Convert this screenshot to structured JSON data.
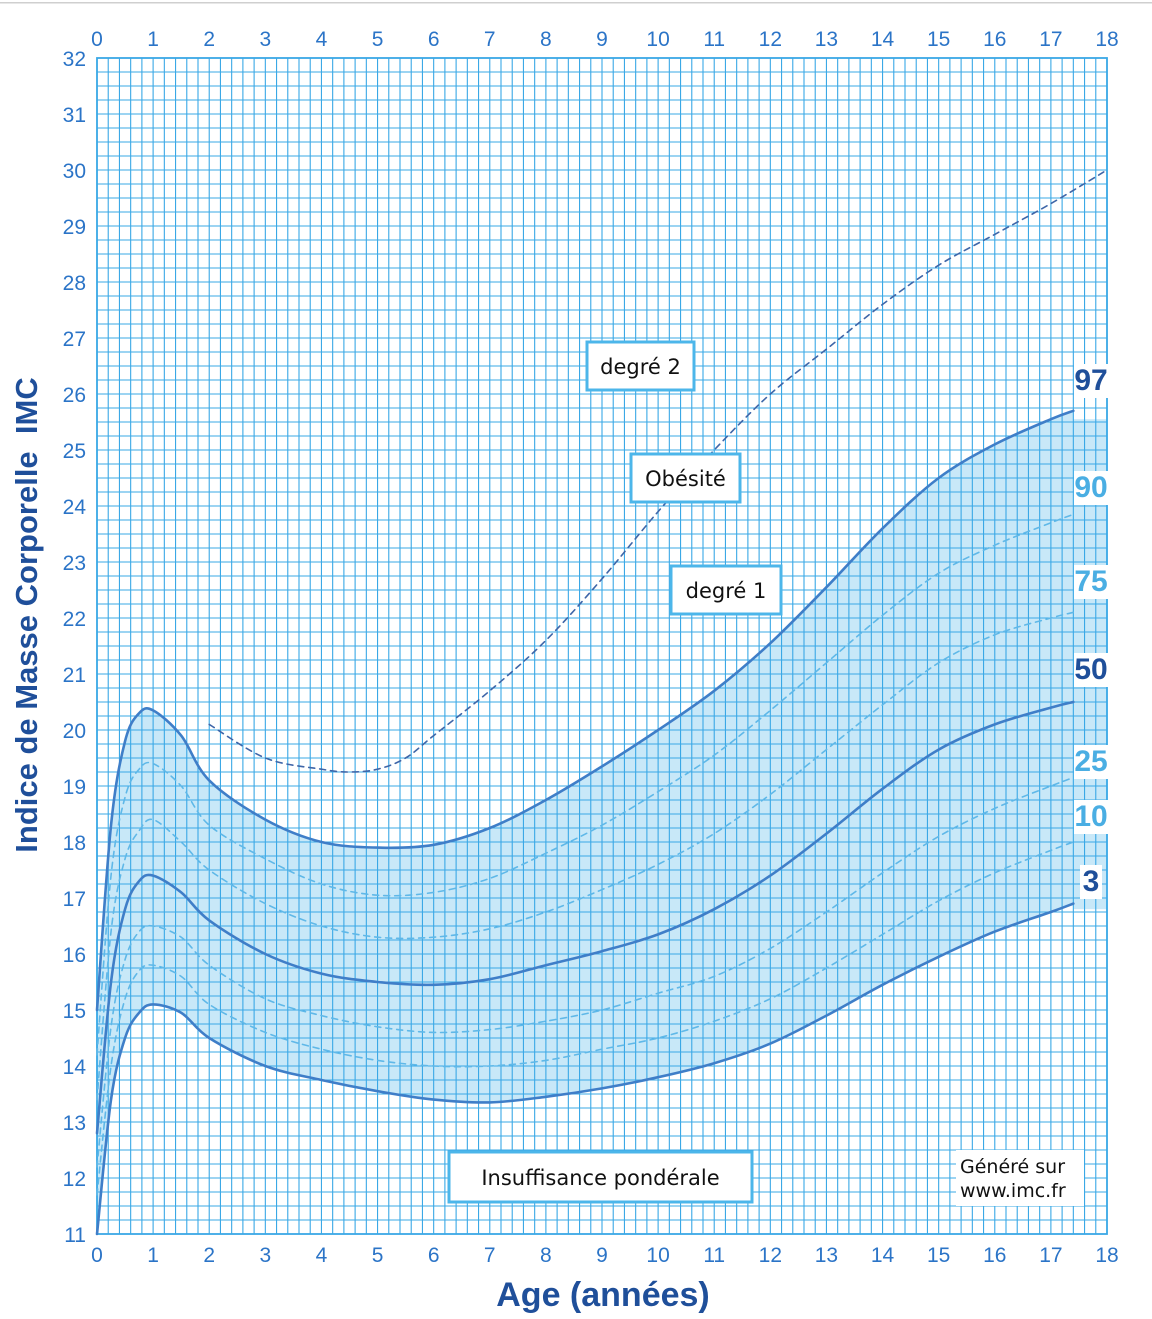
{
  "chart_data": {
    "type": "line",
    "title": "",
    "xlabel": "Age (années)",
    "ylabel": "Indice de Masse Corporelle  IMC",
    "xlim": [
      0,
      18
    ],
    "ylim": [
      11,
      32
    ],
    "x_ticks": [
      "0",
      "1",
      "2",
      "3",
      "4",
      "5",
      "6",
      "7",
      "8",
      "9",
      "10",
      "11",
      "12",
      "13",
      "14",
      "15",
      "16",
      "17",
      "18"
    ],
    "y_ticks": [
      "11",
      "12",
      "13",
      "14",
      "15",
      "16",
      "17",
      "18",
      "19",
      "20",
      "21",
      "22",
      "23",
      "24",
      "25",
      "26",
      "27",
      "28",
      "29",
      "30",
      "31",
      "32"
    ],
    "grid": true,
    "shaded_band": {
      "from_series": "3",
      "to_series": "97",
      "color": "#c8e8f8"
    },
    "series": [
      {
        "name": "3",
        "label": "3",
        "style": "solid",
        "color": "#3f7ec8",
        "x": [
          0,
          0.25,
          0.5,
          0.75,
          1,
          1.5,
          2,
          3,
          4,
          5,
          6,
          7,
          8,
          9,
          10,
          11,
          12,
          13,
          14,
          15,
          16,
          17,
          17.4
        ],
        "y": [
          11.0,
          13.4,
          14.5,
          14.95,
          15.1,
          14.95,
          14.5,
          14.0,
          13.75,
          13.55,
          13.4,
          13.35,
          13.45,
          13.6,
          13.8,
          14.05,
          14.4,
          14.9,
          15.45,
          15.95,
          16.4,
          16.75,
          16.9
        ]
      },
      {
        "name": "10",
        "label": "10",
        "style": "dashed",
        "color": "#5fb8e8",
        "x": [
          0,
          0.25,
          0.5,
          0.75,
          1,
          1.5,
          2,
          3,
          4,
          5,
          6,
          7,
          8,
          9,
          10,
          11,
          12,
          13,
          14,
          15,
          16,
          17,
          17.4
        ],
        "y": [
          11.7,
          14.0,
          15.2,
          15.7,
          15.8,
          15.6,
          15.1,
          14.6,
          14.3,
          14.1,
          14.0,
          14.0,
          14.1,
          14.3,
          14.5,
          14.8,
          15.2,
          15.75,
          16.35,
          16.95,
          17.45,
          17.85,
          18.0
        ]
      },
      {
        "name": "25",
        "label": "25",
        "style": "dashed",
        "color": "#5fb8e8",
        "x": [
          0,
          0.25,
          0.5,
          0.75,
          1,
          1.5,
          2,
          3,
          4,
          5,
          6,
          7,
          8,
          9,
          10,
          11,
          12,
          13,
          14,
          15,
          16,
          17,
          17.4
        ],
        "y": [
          12.2,
          14.7,
          15.9,
          16.4,
          16.5,
          16.3,
          15.8,
          15.2,
          14.9,
          14.7,
          14.6,
          14.65,
          14.8,
          15.0,
          15.3,
          15.6,
          16.1,
          16.75,
          17.45,
          18.1,
          18.6,
          19.0,
          19.15
        ]
      },
      {
        "name": "50",
        "label": "50",
        "style": "solid",
        "color": "#3f7ec8",
        "x": [
          0,
          0.25,
          0.5,
          0.75,
          1,
          1.5,
          2,
          3,
          4,
          5,
          6,
          7,
          8,
          9,
          10,
          11,
          12,
          13,
          14,
          15,
          16,
          17,
          17.4
        ],
        "y": [
          12.8,
          15.5,
          16.8,
          17.3,
          17.4,
          17.1,
          16.6,
          16.0,
          15.65,
          15.5,
          15.45,
          15.55,
          15.8,
          16.05,
          16.35,
          16.8,
          17.4,
          18.15,
          18.95,
          19.65,
          20.1,
          20.4,
          20.5
        ]
      },
      {
        "name": "75",
        "label": "75",
        "style": "dashed",
        "color": "#5fb8e8",
        "x": [
          0,
          0.25,
          0.5,
          0.75,
          1,
          1.5,
          2,
          3,
          4,
          5,
          6,
          7,
          8,
          9,
          10,
          11,
          12,
          13,
          14,
          15,
          16,
          17,
          17.4
        ],
        "y": [
          13.4,
          16.4,
          17.7,
          18.2,
          18.4,
          18.0,
          17.5,
          16.9,
          16.5,
          16.3,
          16.3,
          16.45,
          16.75,
          17.15,
          17.6,
          18.15,
          18.85,
          19.65,
          20.45,
          21.2,
          21.7,
          22.0,
          22.1
        ]
      },
      {
        "name": "90",
        "label": "90",
        "style": "dashed",
        "color": "#5fb8e8",
        "x": [
          0,
          0.25,
          0.5,
          0.75,
          1,
          1.5,
          2,
          3,
          4,
          5,
          6,
          7,
          8,
          9,
          10,
          11,
          12,
          13,
          14,
          15,
          16,
          17,
          17.4
        ],
        "y": [
          14.2,
          17.4,
          18.8,
          19.3,
          19.4,
          19.0,
          18.3,
          17.7,
          17.25,
          17.05,
          17.1,
          17.35,
          17.8,
          18.3,
          18.9,
          19.55,
          20.35,
          21.2,
          22.05,
          22.8,
          23.3,
          23.7,
          23.85
        ]
      },
      {
        "name": "97",
        "label": "97",
        "style": "solid",
        "color": "#3f7ec8",
        "x": [
          0,
          0.25,
          0.5,
          0.75,
          1,
          1.5,
          2,
          3,
          4,
          5,
          6,
          7,
          8,
          9,
          10,
          11,
          12,
          13,
          14,
          15,
          16,
          17,
          17.4
        ],
        "y": [
          15.0,
          18.3,
          19.8,
          20.3,
          20.35,
          19.9,
          19.1,
          18.4,
          18.0,
          17.9,
          17.95,
          18.25,
          18.75,
          19.35,
          20.0,
          20.7,
          21.55,
          22.55,
          23.6,
          24.5,
          25.1,
          25.55,
          25.7
        ]
      },
      {
        "name": "Obésité degré 2",
        "label": "",
        "style": "dashed",
        "color": "#3f66a8",
        "x": [
          2,
          3,
          4,
          4.5,
          5,
          5.5,
          6,
          7,
          8,
          9,
          10,
          11,
          12,
          13,
          14,
          15,
          16,
          17,
          18
        ],
        "y": [
          20.1,
          19.5,
          19.3,
          19.25,
          19.3,
          19.5,
          19.9,
          20.7,
          21.6,
          22.7,
          23.9,
          25.0,
          26.0,
          26.8,
          27.6,
          28.3,
          28.85,
          29.4,
          30.0
        ]
      }
    ],
    "annotations": [
      {
        "text": "degré 2",
        "x": 9.75,
        "y": 26.5
      },
      {
        "text": "Obésité",
        "x": 10.5,
        "y": 24.5
      },
      {
        "text": "degré 1",
        "x": 11.3,
        "y": 22.5
      },
      {
        "text": "Insuffisance pondérale",
        "x": 8.9,
        "y": 12.05
      }
    ],
    "credit": [
      "Généré sur",
      "www.imc.fr"
    ]
  }
}
